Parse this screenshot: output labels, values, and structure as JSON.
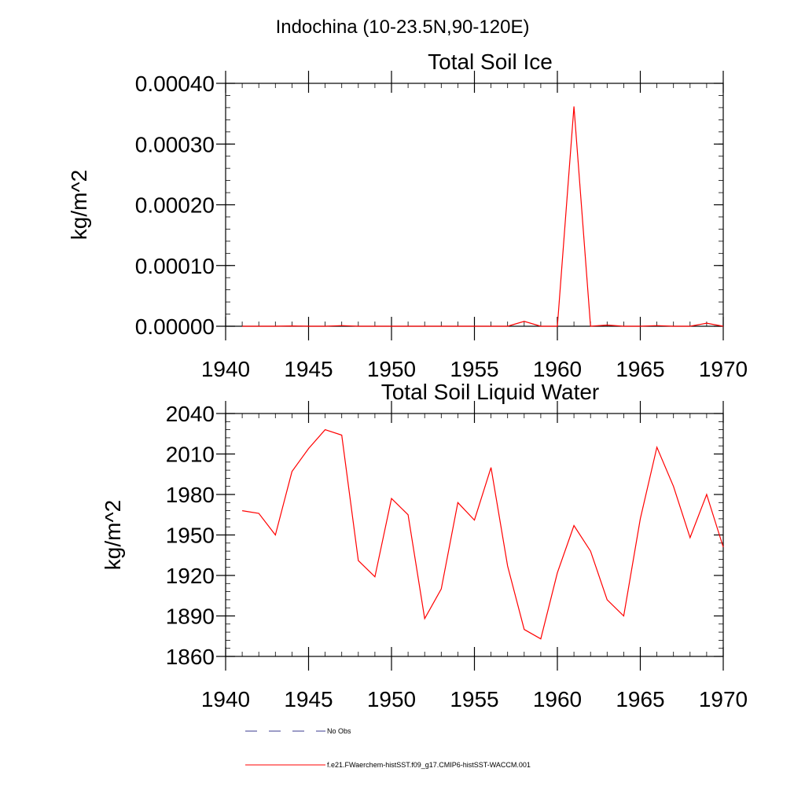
{
  "figure": {
    "title": "Indochina (10-23.5N,90-120E)"
  },
  "chart_data": [
    {
      "type": "line",
      "title": "Total Soil Ice",
      "xlabel": "",
      "ylabel": "kg/m^2",
      "xlim": [
        1940,
        1970
      ],
      "ylim": [
        0,
        0.0004
      ],
      "x_ticks": [
        1940,
        1945,
        1950,
        1955,
        1960,
        1965,
        1970
      ],
      "x_tick_labels": [
        "1940",
        "1945",
        "1950",
        "1955",
        "1960",
        "1965",
        "1970"
      ],
      "y_ticks": [
        0,
        0.0001,
        0.0002,
        0.0003,
        0.0004
      ],
      "y_tick_labels": [
        "0.00000",
        "0.00010",
        "0.00020",
        "0.00030",
        "0.00040"
      ],
      "y_minor_step": 2e-05,
      "x_minor_step": 1,
      "grid": false,
      "series": [
        {
          "name": "f.e21.FWaerchem-histSST.f09_g17.CMIP6-histSST-WACCM.001",
          "color": "#ff0000",
          "x": [
            1941,
            1942,
            1943,
            1944,
            1945,
            1946,
            1947,
            1948,
            1949,
            1950,
            1951,
            1952,
            1953,
            1954,
            1955,
            1956,
            1957,
            1958,
            1959,
            1960,
            1961,
            1962,
            1963,
            1964,
            1965,
            1966,
            1967,
            1968,
            1969,
            1970
          ],
          "y": [
            0,
            0,
            0,
            5e-07,
            0,
            0,
            1e-06,
            0,
            0,
            0,
            0,
            0,
            0,
            0,
            0,
            0,
            0,
            8e-06,
            0,
            0,
            0.000362,
            0,
            2e-06,
            0,
            0,
            1e-06,
            0,
            0,
            5e-06,
            0
          ]
        }
      ]
    },
    {
      "type": "line",
      "title": "Total Soil Liquid Water",
      "xlabel": "",
      "ylabel": "kg/m^2",
      "xlim": [
        1940,
        1970
      ],
      "ylim": [
        1860,
        2040
      ],
      "x_ticks": [
        1940,
        1945,
        1950,
        1955,
        1960,
        1965,
        1970
      ],
      "x_tick_labels": [
        "1940",
        "1945",
        "1950",
        "1955",
        "1960",
        "1965",
        "1970"
      ],
      "y_ticks": [
        1860,
        1890,
        1920,
        1950,
        1980,
        2010,
        2040
      ],
      "y_tick_labels": [
        "1860",
        "1890",
        "1920",
        "1950",
        "1980",
        "2010",
        "2040"
      ],
      "y_minor_step": 6,
      "x_minor_step": 1,
      "grid": false,
      "series": [
        {
          "name": "f.e21.FWaerchem-histSST.f09_g17.CMIP6-histSST-WACCM.001",
          "color": "#ff0000",
          "x": [
            1941,
            1942,
            1943,
            1944,
            1945,
            1946,
            1947,
            1948,
            1949,
            1950,
            1951,
            1952,
            1953,
            1954,
            1955,
            1956,
            1957,
            1958,
            1959,
            1960,
            1961,
            1962,
            1963,
            1964,
            1965,
            1966,
            1967,
            1968,
            1969,
            1970
          ],
          "y": [
            1968,
            1966,
            1950,
            1997,
            2014,
            2028,
            2024,
            1931,
            1919,
            1977,
            1965,
            1888,
            1910,
            1974,
            1961,
            2000,
            1927,
            1880,
            1873,
            1922,
            1957,
            1938,
            1902,
            1890,
            1962,
            2015,
            1986,
            1948,
            1980,
            1941
          ]
        }
      ]
    }
  ],
  "legend": {
    "position": "bottom",
    "items": [
      {
        "label": "No Obs",
        "color": "#3b3b8f",
        "style": "dashed"
      },
      {
        "label": "f.e21.FWaerchem-histSST.f09_g17.CMIP6-histSST-WACCM.001",
        "color": "#ff0000",
        "style": "solid"
      }
    ]
  }
}
